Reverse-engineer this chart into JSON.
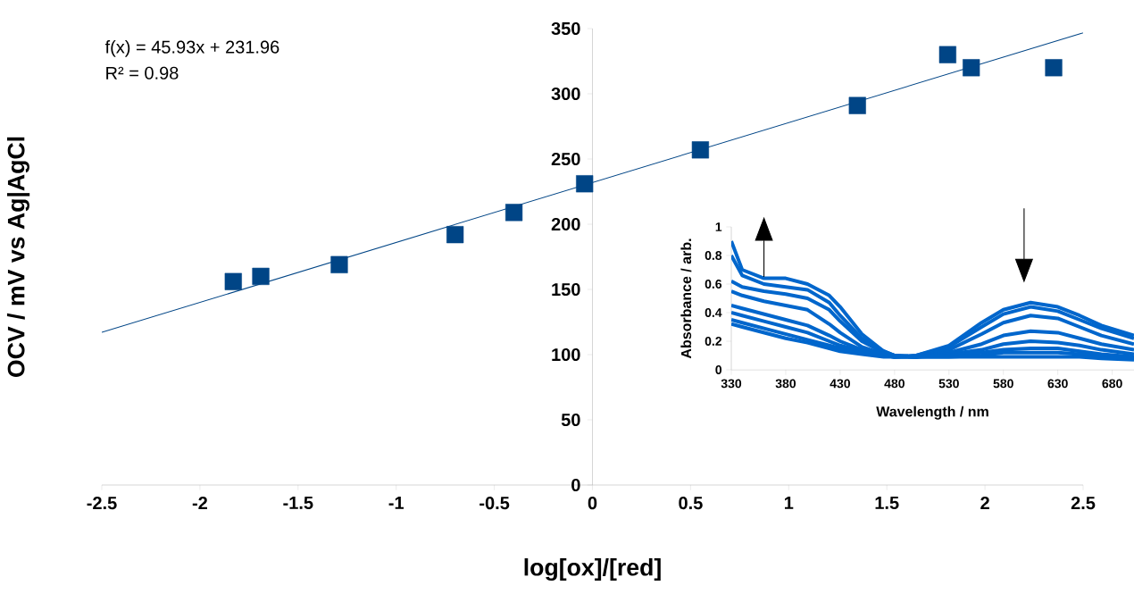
{
  "chart_data": [
    {
      "type": "scatter",
      "xlabel": "log[ox]/[red]",
      "ylabel": "OCV / mV vs Ag|AgCl",
      "marker": "square",
      "annotations": [
        "f(x) = 45.93x + 231.96",
        "R² = 0.98"
      ],
      "xlim": [
        -2.5,
        2.5
      ],
      "ylim": [
        0,
        350
      ],
      "xticks": [
        -2.5,
        -2,
        -1.5,
        -1,
        -0.5,
        0,
        0.5,
        1,
        1.5,
        2,
        2.5
      ],
      "yticks": [
        0,
        50,
        100,
        150,
        200,
        250,
        300,
        350
      ],
      "series": [
        {
          "type": "scatter",
          "color": "#004586",
          "x": [
            -1.83,
            -1.69,
            -1.29,
            -0.7,
            -0.4,
            -0.04,
            0.55,
            1.35,
            1.81,
            1.93,
            2.35
          ],
          "values": [
            156,
            160,
            169,
            192,
            209,
            231,
            257,
            291,
            330,
            320,
            320
          ]
        },
        {
          "type": "line",
          "color": "#004586",
          "marker": "none",
          "x": [
            -2.5,
            2.5
          ],
          "values": [
            117.1,
            346.8
          ]
        }
      ]
    },
    {
      "type": "line",
      "xlabel": "Wavelength / nm",
      "ylabel": "Absorbance / arb.",
      "xlim": [
        330,
        700
      ],
      "ylim": [
        0,
        1
      ],
      "xticks": [
        330,
        380,
        430,
        480,
        530,
        580,
        630,
        680
      ],
      "yticks": [
        0,
        0.2,
        0.4,
        0.6,
        0.8,
        1
      ],
      "x": [
        330,
        340,
        360,
        380,
        400,
        420,
        430,
        450,
        470,
        480,
        500,
        530,
        560,
        580,
        605,
        630,
        650,
        670,
        700
      ],
      "series": [
        {
          "color": "#0066cc",
          "values": [
            0.32,
            0.3,
            0.26,
            0.22,
            0.19,
            0.15,
            0.13,
            0.11,
            0.09,
            0.09,
            0.1,
            0.17,
            0.33,
            0.42,
            0.47,
            0.44,
            0.38,
            0.31,
            0.24
          ]
        },
        {
          "color": "#0066cc",
          "values": [
            0.35,
            0.33,
            0.29,
            0.25,
            0.21,
            0.17,
            0.15,
            0.12,
            0.1,
            0.09,
            0.1,
            0.16,
            0.3,
            0.39,
            0.44,
            0.41,
            0.35,
            0.29,
            0.22
          ]
        },
        {
          "color": "#0066cc",
          "values": [
            0.4,
            0.38,
            0.34,
            0.3,
            0.26,
            0.2,
            0.17,
            0.13,
            0.1,
            0.09,
            0.09,
            0.14,
            0.25,
            0.33,
            0.38,
            0.36,
            0.3,
            0.24,
            0.18
          ]
        },
        {
          "color": "#0066cc",
          "values": [
            0.45,
            0.43,
            0.39,
            0.35,
            0.31,
            0.24,
            0.2,
            0.14,
            0.1,
            0.09,
            0.09,
            0.12,
            0.18,
            0.24,
            0.27,
            0.26,
            0.22,
            0.18,
            0.14
          ]
        },
        {
          "color": "#0066cc",
          "values": [
            0.55,
            0.52,
            0.48,
            0.45,
            0.42,
            0.32,
            0.26,
            0.16,
            0.11,
            0.09,
            0.09,
            0.11,
            0.14,
            0.18,
            0.2,
            0.19,
            0.17,
            0.14,
            0.11
          ]
        },
        {
          "color": "#0066cc",
          "values": [
            0.62,
            0.58,
            0.55,
            0.53,
            0.5,
            0.42,
            0.34,
            0.2,
            0.12,
            0.1,
            0.09,
            0.1,
            0.12,
            0.14,
            0.15,
            0.15,
            0.13,
            0.11,
            0.09
          ]
        },
        {
          "color": "#0066cc",
          "values": [
            0.8,
            0.66,
            0.6,
            0.58,
            0.56,
            0.47,
            0.38,
            0.22,
            0.13,
            0.1,
            0.09,
            0.09,
            0.1,
            0.12,
            0.12,
            0.12,
            0.11,
            0.09,
            0.08
          ]
        },
        {
          "color": "#0066cc",
          "values": [
            0.9,
            0.7,
            0.64,
            0.64,
            0.6,
            0.52,
            0.44,
            0.25,
            0.13,
            0.1,
            0.09,
            0.09,
            0.09,
            0.09,
            0.09,
            0.09,
            0.09,
            0.08,
            0.07
          ]
        }
      ]
    }
  ]
}
